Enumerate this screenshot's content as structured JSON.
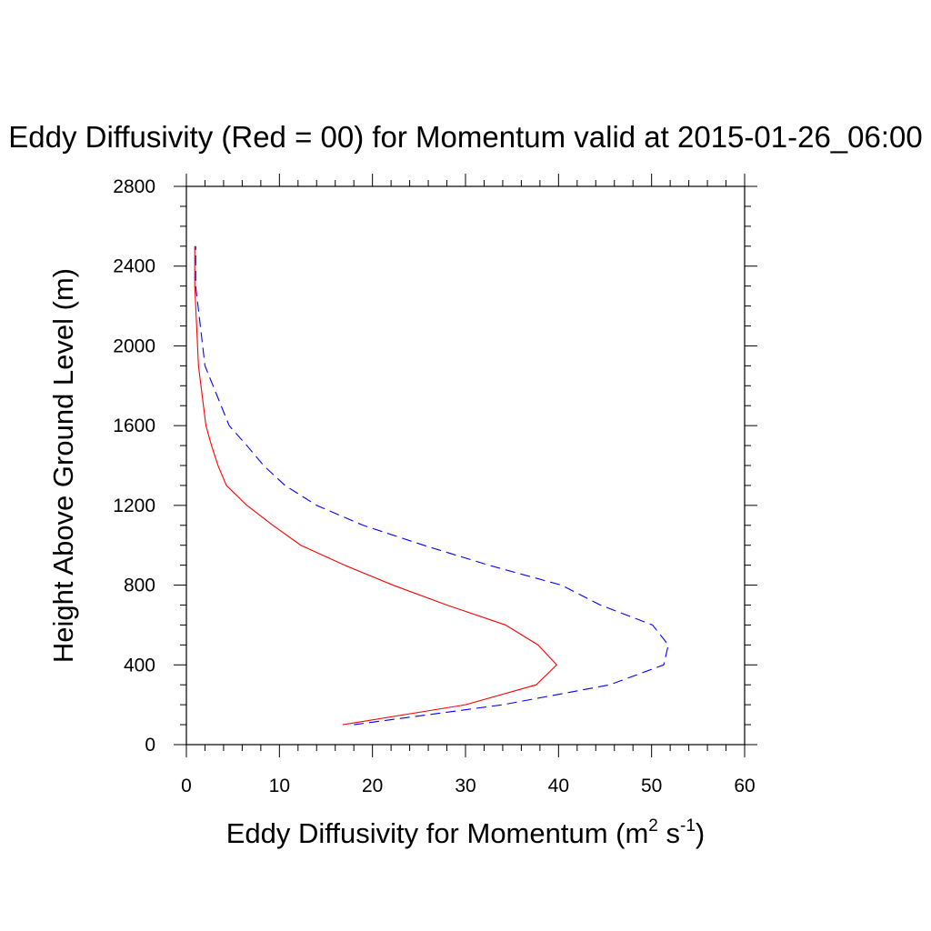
{
  "chart_data": {
    "type": "line",
    "title": "Eddy Diffusivity (Red = 00) for Momentum valid at 2015-01-26_06:00",
    "xlabel": {
      "base": "Eddy Diffusivity for Momentum (m",
      "sup1": "2",
      "mid": " s",
      "sup2": "-1",
      "end": ")"
    },
    "ylabel": "Height Above Ground Level (m)",
    "xlim": [
      0,
      60
    ],
    "ylim": [
      0,
      2800
    ],
    "x_ticks": [
      "0",
      "10",
      "20",
      "30",
      "40",
      "50",
      "60"
    ],
    "y_ticks": [
      "0",
      "400",
      "800",
      "1200",
      "1600",
      "2000",
      "2400",
      "2800"
    ],
    "grid": false,
    "series": [
      {
        "color": "#ff0000",
        "style": "solid",
        "points": [
          [
            16.8,
            100
          ],
          [
            30.0,
            200
          ],
          [
            37.6,
            300
          ],
          [
            39.8,
            400
          ],
          [
            37.8,
            500
          ],
          [
            34.3,
            600
          ],
          [
            28.0,
            700
          ],
          [
            22.2,
            800
          ],
          [
            17.0,
            900
          ],
          [
            12.3,
            1000
          ],
          [
            9.3,
            1100
          ],
          [
            6.5,
            1200
          ],
          [
            4.3,
            1300
          ],
          [
            3.4,
            1400
          ],
          [
            2.7,
            1500
          ],
          [
            2.1,
            1600
          ],
          [
            1.7,
            1750
          ],
          [
            1.3,
            1900
          ],
          [
            1.1,
            2100
          ],
          [
            0.9,
            2300
          ],
          [
            0.9,
            2500
          ]
        ]
      },
      {
        "color": "#0000ff",
        "style": "dashed",
        "points": [
          [
            18.0,
            100
          ],
          [
            34.0,
            200
          ],
          [
            45.5,
            300
          ],
          [
            51.3,
            400
          ],
          [
            51.8,
            500
          ],
          [
            50.1,
            600
          ],
          [
            44.5,
            700
          ],
          [
            40.3,
            800
          ],
          [
            32.5,
            900
          ],
          [
            25.5,
            1000
          ],
          [
            19.0,
            1100
          ],
          [
            14.0,
            1200
          ],
          [
            10.6,
            1300
          ],
          [
            8.3,
            1400
          ],
          [
            6.5,
            1500
          ],
          [
            4.6,
            1600
          ],
          [
            3.3,
            1750
          ],
          [
            2.0,
            1900
          ],
          [
            1.5,
            2100
          ],
          [
            1.0,
            2300
          ],
          [
            1.0,
            2500
          ]
        ]
      }
    ]
  }
}
